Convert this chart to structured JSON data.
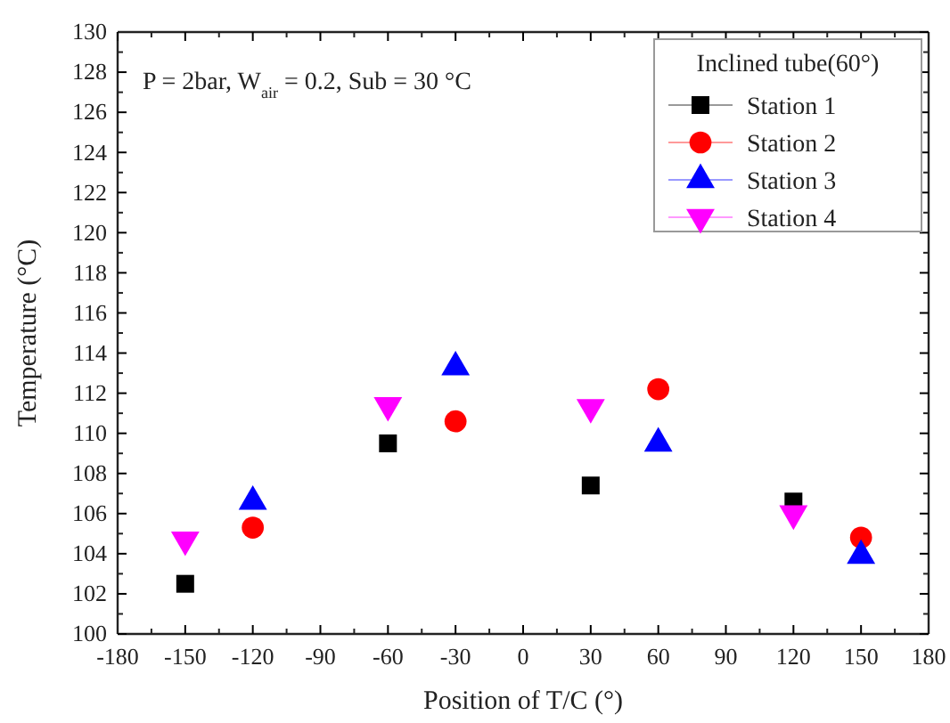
{
  "chart_data": {
    "type": "scatter",
    "xlabel": "Position of T/C (°)",
    "ylabel": "Temperature (°C)",
    "legend_title": "Inclined tube(60°)",
    "legend": "top right",
    "grid": false,
    "annotations": [
      "P = 2bar, W$_{air}$ = 0.2, Sub = 30 °C"
    ],
    "xlim": [
      -180,
      180
    ],
    "xticks": [
      -180,
      -150,
      -120,
      -90,
      -60,
      -30,
      0,
      30,
      60,
      90,
      120,
      150,
      180
    ],
    "ylim": [
      100,
      130
    ],
    "yticks": [
      100,
      102,
      104,
      106,
      108,
      110,
      112,
      114,
      116,
      118,
      120,
      122,
      124,
      126,
      128,
      130
    ],
    "series": [
      {
        "name": "Station 1",
        "color": "#000000",
        "marker": "square",
        "x": [
          -150,
          -60,
          30,
          120
        ],
        "values": [
          102.5,
          109.5,
          107.4,
          106.6
        ]
      },
      {
        "name": "Station 2",
        "color": "#ff0000",
        "marker": "circle",
        "x": [
          -120,
          -30,
          60,
          150
        ],
        "values": [
          105.3,
          110.6,
          112.2,
          104.8
        ]
      },
      {
        "name": "Station 3",
        "color": "#0000ff",
        "marker": "triangle",
        "x": [
          -120,
          -30,
          60,
          150
        ],
        "values": [
          106.6,
          113.3,
          109.5,
          103.9
        ]
      },
      {
        "name": "Station 4",
        "color": "#ff00ff",
        "marker": "triangle-down",
        "x": [
          -150,
          -60,
          30,
          120
        ],
        "values": [
          104.7,
          111.4,
          111.3,
          106.0
        ]
      }
    ]
  }
}
